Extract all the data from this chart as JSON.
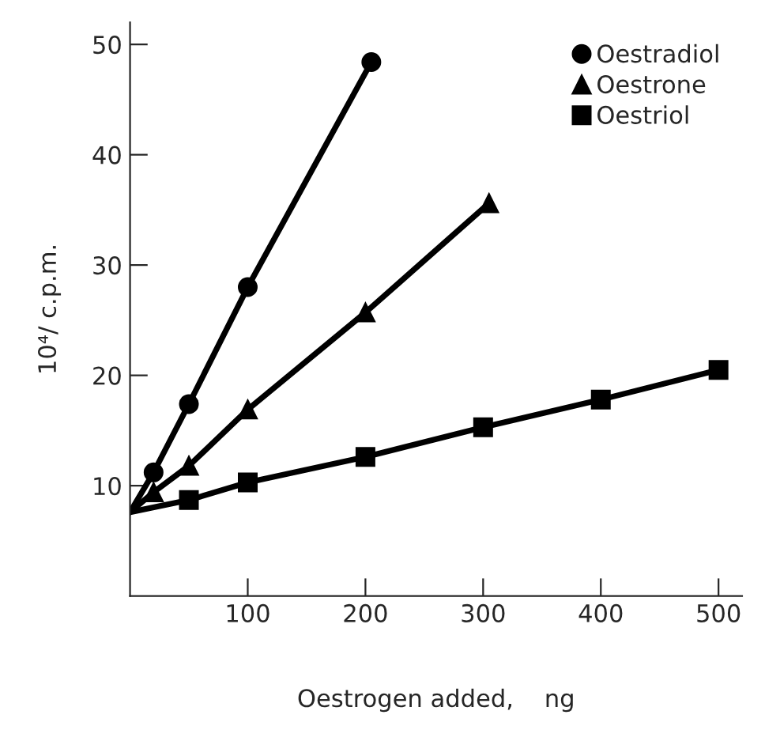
{
  "chart_data": {
    "type": "line",
    "xlabel": "Oestrogen added,    ng",
    "ylabel": "10⁴/ c.p.m.",
    "xlim": [
      0,
      520
    ],
    "ylim": [
      0,
      52
    ],
    "xticks": [
      100,
      200,
      300,
      400,
      500
    ],
    "yticks": [
      10,
      20,
      30,
      40,
      50
    ],
    "grid": false,
    "legend": "top right",
    "line_style": "solid",
    "series": [
      {
        "name": "Oestradiol",
        "color": "#000000",
        "marker": "circle",
        "x": [
          20,
          50,
          100,
          205
        ],
        "values": [
          11.2,
          17.4,
          28,
          48.4
        ]
      },
      {
        "name": "Oestrone",
        "color": "#000000",
        "marker": "triangle",
        "x": [
          20,
          50,
          100,
          200,
          305
        ],
        "values": [
          9.4,
          11.8,
          16.9,
          25.7,
          35.6
        ]
      },
      {
        "name": "Oestriol",
        "color": "#000000",
        "marker": "square",
        "x": [
          50,
          100,
          200,
          300,
          400,
          500
        ],
        "values": [
          8.7,
          10.3,
          12.6,
          15.3,
          17.8,
          20.5
        ]
      },
      {
        "color": "#000000",
        "marker": "none",
        "x": [
          0,
          20
        ],
        "values": [
          7.6,
          11.2
        ]
      },
      {
        "color": "#000000",
        "marker": "none",
        "x": [
          0,
          20
        ],
        "values": [
          7.6,
          9.4
        ]
      },
      {
        "color": "#000000",
        "marker": "none",
        "x": [
          0,
          50
        ],
        "values": [
          7.6,
          8.7
        ]
      }
    ]
  }
}
